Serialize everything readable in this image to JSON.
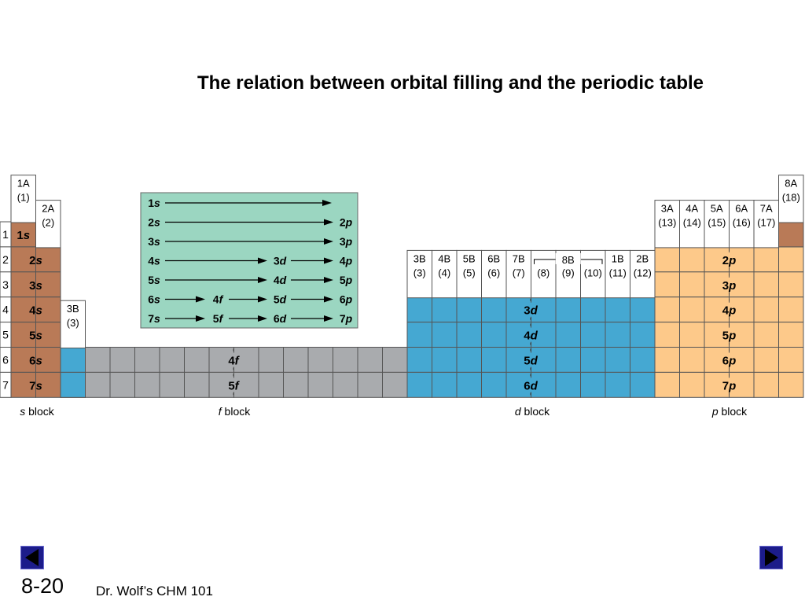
{
  "slide": {
    "title": "The relation between orbital filling and the periodic table",
    "number": "8-20",
    "footer": "Dr. Wolf’s CHM 101",
    "nav": {
      "prev": "previous-slide",
      "next": "next-slide"
    }
  },
  "colors": {
    "s": "#b97a57",
    "d": "#45a8d2",
    "p": "#fdc98a",
    "f": "#a9abae",
    "legend": "#9bd6c1"
  },
  "periods": [
    "1",
    "2",
    "3",
    "4",
    "5",
    "6",
    "7"
  ],
  "group_headers": [
    {
      "top": "1A",
      "bottom": "(1)"
    },
    {
      "top": "2A",
      "bottom": "(2)"
    },
    {
      "top": "3B",
      "bottom": "(3)"
    },
    {
      "top": "3B",
      "bottom": "(3)"
    },
    {
      "top": "4B",
      "bottom": "(4)"
    },
    {
      "top": "5B",
      "bottom": "(5)"
    },
    {
      "top": "6B",
      "bottom": "(6)"
    },
    {
      "top": "7B",
      "bottom": "(7)"
    },
    {
      "top": "8B",
      "bottom": ""
    },
    {
      "top": "",
      "bottom": "(8)"
    },
    {
      "top": "",
      "bottom": "(9)"
    },
    {
      "top": "",
      "bottom": "(10)"
    },
    {
      "top": "1B",
      "bottom": "(11)"
    },
    {
      "top": "2B",
      "bottom": "(12)"
    },
    {
      "top": "3A",
      "bottom": "(13)"
    },
    {
      "top": "4A",
      "bottom": "(14)"
    },
    {
      "top": "5A",
      "bottom": "(15)"
    },
    {
      "top": "6A",
      "bottom": "(16)"
    },
    {
      "top": "7A",
      "bottom": "(17)"
    },
    {
      "top": "8A",
      "bottom": "(18)"
    }
  ],
  "sublevels": {
    "s": [
      [
        "1",
        "s"
      ],
      [
        "2",
        "s"
      ],
      [
        "3",
        "s"
      ],
      [
        "4",
        "s"
      ],
      [
        "5",
        "s"
      ],
      [
        "6",
        "s"
      ],
      [
        "7",
        "s"
      ]
    ],
    "p": [
      [
        "2",
        "p"
      ],
      [
        "3",
        "p"
      ],
      [
        "4",
        "p"
      ],
      [
        "5",
        "p"
      ],
      [
        "6",
        "p"
      ],
      [
        "7",
        "p"
      ]
    ],
    "d": [
      [
        "3",
        "d"
      ],
      [
        "4",
        "d"
      ],
      [
        "5",
        "d"
      ],
      [
        "6",
        "d"
      ]
    ],
    "f": [
      [
        "4",
        "f"
      ],
      [
        "5",
        "f"
      ]
    ]
  },
  "block_labels": [
    [
      "s",
      " block"
    ],
    [
      "f",
      " block"
    ],
    [
      "d",
      " block"
    ],
    [
      "p",
      " block"
    ]
  ],
  "filling_order": [
    [
      [
        "1",
        "s"
      ]
    ],
    [
      [
        "2",
        "s"
      ],
      [
        "2",
        "p"
      ]
    ],
    [
      [
        "3",
        "s"
      ],
      [
        "3",
        "p"
      ]
    ],
    [
      [
        "4",
        "s"
      ],
      [
        "3",
        "d"
      ],
      [
        "4",
        "p"
      ]
    ],
    [
      [
        "5",
        "s"
      ],
      [
        "4",
        "d"
      ],
      [
        "5",
        "p"
      ]
    ],
    [
      [
        "6",
        "s"
      ],
      [
        "4",
        "f"
      ],
      [
        "5",
        "d"
      ],
      [
        "6",
        "p"
      ]
    ],
    [
      [
        "7",
        "s"
      ],
      [
        "5",
        "f"
      ],
      [
        "6",
        "d"
      ],
      [
        "7",
        "p"
      ]
    ]
  ]
}
